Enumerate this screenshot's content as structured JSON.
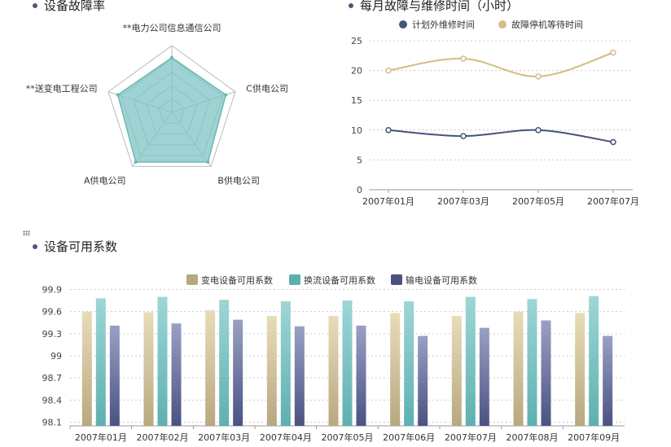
{
  "titles": {
    "fault_rate": "设备故障率",
    "monthly": "每月故障与维修时间（小时）",
    "availability": "设备可用系数"
  },
  "chart_data": [
    {
      "type": "radar",
      "indicators": [
        "**电力公司信息通信公司",
        "C供电公司",
        "B供电公司",
        "A供电公司",
        "**送变电工程公司"
      ],
      "rings": 5,
      "series": [
        {
          "values": [
            0.82,
            0.85,
            0.92,
            0.92,
            0.85
          ]
        }
      ],
      "colors": {
        "fill": "#7fc4c4",
        "stroke": "#6bb8b8",
        "grid": "#bbbbbb"
      }
    },
    {
      "type": "line",
      "x": [
        "2007年01月",
        "2007年03月",
        "2007年05月",
        "2007年07月"
      ],
      "ylim": [
        0,
        25
      ],
      "yticks": [
        0,
        5,
        10,
        15,
        20,
        25
      ],
      "legend_position": "top",
      "smooth": true,
      "series": [
        {
          "name": "计划外维修时间",
          "values": [
            10,
            9,
            10,
            8
          ],
          "color": "#46527a"
        },
        {
          "name": "故障停机等待时间",
          "values": [
            20,
            22,
            19,
            23
          ],
          "color": "#d4bd85"
        }
      ]
    },
    {
      "type": "bar",
      "categories": [
        "2007年01月",
        "2007年02月",
        "2007年03月",
        "2007年04月",
        "2007年05月",
        "2007年06月",
        "2007年07月",
        "2007年08月",
        "2007年09月"
      ],
      "ylim": [
        98.05,
        99.95
      ],
      "yticks": [
        "98.1",
        "98.4",
        "98.7",
        "99",
        "99.3",
        "99.6",
        "99.9"
      ],
      "legend_position": "top",
      "series": [
        {
          "name": "变电设备可用系数",
          "values": [
            99.6,
            99.59,
            99.62,
            99.54,
            99.54,
            99.58,
            99.54,
            99.6,
            99.58
          ],
          "color_top": "#e8dcb8",
          "color_bottom": "#b8a880"
        },
        {
          "name": "换流设备可用系数",
          "values": [
            99.78,
            99.8,
            99.76,
            99.74,
            99.75,
            99.74,
            99.8,
            99.77,
            99.81
          ],
          "color_top": "#9ed6d6",
          "color_bottom": "#5eb0b0"
        },
        {
          "name": "输电设备可用系数",
          "values": [
            99.41,
            99.44,
            99.49,
            99.4,
            99.41,
            99.27,
            99.38,
            99.48,
            99.27
          ],
          "color_top": "#9aa0c4",
          "color_bottom": "#4a5282"
        }
      ]
    }
  ]
}
